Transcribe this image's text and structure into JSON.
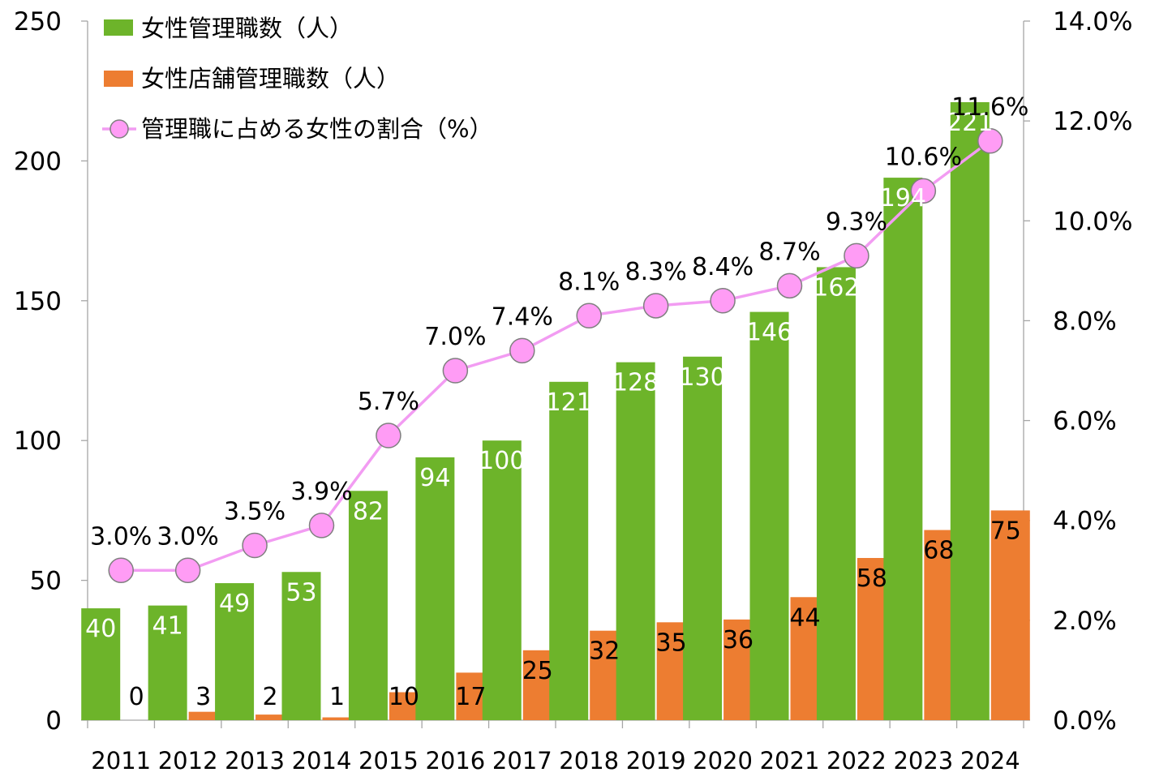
{
  "chart_data": {
    "type": "bar",
    "categories": [
      "2011",
      "2012",
      "2013",
      "2014",
      "2015",
      "2016",
      "2017",
      "2018",
      "2019",
      "2020",
      "2021",
      "2022",
      "2023",
      "2024"
    ],
    "series": [
      {
        "name": "女性管理職数（人）",
        "kind": "bar",
        "axis": "left",
        "color": "#6db42a",
        "values": [
          40,
          41,
          49,
          53,
          82,
          94,
          100,
          121,
          128,
          130,
          146,
          162,
          194,
          221
        ]
      },
      {
        "name": "女性店舗管理職数（人）",
        "kind": "bar",
        "axis": "left",
        "color": "#ed7d31",
        "values": [
          0,
          3,
          2,
          1,
          10,
          17,
          25,
          32,
          35,
          36,
          44,
          58,
          68,
          75
        ]
      },
      {
        "name": "管理職に占める女性の割合（%）",
        "kind": "line",
        "axis": "right",
        "color": "#f29cf2",
        "marker_color": "#ff9cf5",
        "values": [
          3.0,
          3.0,
          3.5,
          3.9,
          5.7,
          7.0,
          7.4,
          8.1,
          8.3,
          8.4,
          8.7,
          9.3,
          10.6,
          11.6
        ],
        "labels": [
          "3.0%",
          "3.0%",
          "3.5%",
          "3.9%",
          "5.7%",
          "7.0%",
          "7.4%",
          "8.1%",
          "8.3%",
          "8.4%",
          "8.7%",
          "9.3%",
          "10.6%",
          "11.6%"
        ]
      }
    ],
    "y_left": {
      "range": [
        0,
        250
      ],
      "ticks": [
        "0",
        "50",
        "100",
        "150",
        "200",
        "250"
      ]
    },
    "y_right": {
      "range": [
        0,
        14
      ],
      "ticks": [
        "0.0%",
        "2.0%",
        "4.0%",
        "6.0%",
        "8.0%",
        "10.0%",
        "12.0%",
        "14.0%"
      ]
    },
    "legend_position": "top-left",
    "grid": false,
    "title": "",
    "xlabel": "",
    "ylabel": ""
  }
}
